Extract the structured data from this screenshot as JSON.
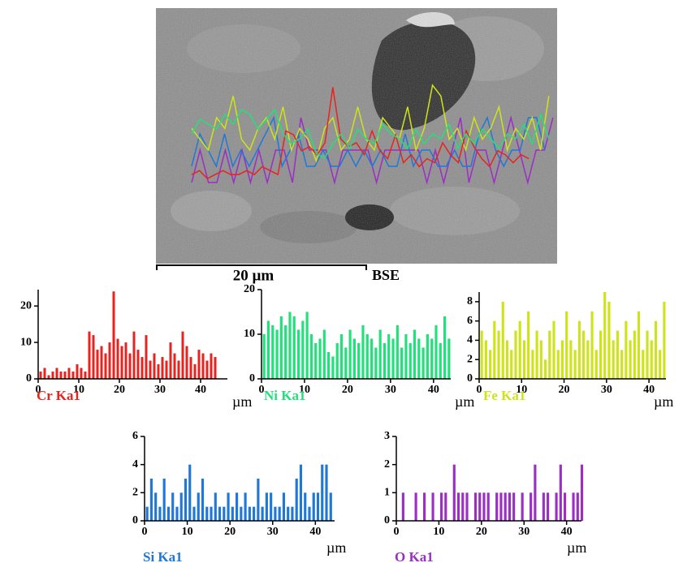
{
  "image": {
    "scale_bar_label": "20 µm",
    "detector": "BSE"
  },
  "chart_data": [
    {
      "type": "bar",
      "title": "Cr Ka1",
      "x_label": "µm",
      "color": "#e8231f",
      "x": [
        0,
        1,
        2,
        3,
        4,
        5,
        6,
        7,
        8,
        9,
        10,
        11,
        12,
        13,
        14,
        15,
        16,
        17,
        18,
        19,
        20,
        21,
        22,
        23,
        24,
        25,
        26,
        27,
        28,
        29,
        30,
        31,
        32,
        33,
        34,
        35,
        36,
        37,
        38,
        39,
        40,
        41,
        42,
        43
      ],
      "values": [
        2,
        3,
        1,
        2,
        3,
        2,
        2,
        3,
        2,
        4,
        3,
        2,
        13,
        12,
        8,
        9,
        7,
        10,
        24,
        11,
        9,
        10,
        7,
        13,
        8,
        6,
        12,
        5,
        7,
        4,
        6,
        5,
        10,
        7,
        5,
        13,
        9,
        6,
        4,
        8,
        7,
        5,
        7,
        6
      ],
      "xlim": [
        0,
        46.6
      ],
      "ylim": [
        0,
        24.5
      ],
      "xticks": [
        0,
        10,
        20,
        30,
        40
      ],
      "yticks": [
        0,
        10,
        20
      ]
    },
    {
      "type": "bar",
      "title": "Ni Ka1",
      "x_label": "µm",
      "color": "#22e07a",
      "x": [
        0,
        1,
        2,
        3,
        4,
        5,
        6,
        7,
        8,
        9,
        10,
        11,
        12,
        13,
        14,
        15,
        16,
        17,
        18,
        19,
        20,
        21,
        22,
        23,
        24,
        25,
        26,
        27,
        28,
        29,
        30,
        31,
        32,
        33,
        34,
        35,
        36,
        37,
        38,
        39,
        40,
        41,
        42,
        43
      ],
      "values": [
        10,
        13,
        12,
        11,
        14,
        12,
        15,
        14,
        11,
        13,
        15,
        10,
        8,
        9,
        11,
        6,
        5,
        8,
        10,
        7,
        11,
        9,
        8,
        12,
        10,
        9,
        7,
        11,
        8,
        10,
        9,
        12,
        7,
        10,
        8,
        11,
        9,
        7,
        10,
        9,
        12,
        8,
        14,
        9
      ],
      "xlim": [
        0,
        44
      ],
      "ylim": [
        0,
        20
      ],
      "xticks": [
        0,
        10,
        20,
        30,
        40
      ],
      "yticks": [
        0,
        10,
        20
      ]
    },
    {
      "type": "bar",
      "title": "Fe Ka1",
      "x_label": "µm",
      "color": "#cfe31a",
      "x": [
        0,
        1,
        2,
        3,
        4,
        5,
        6,
        7,
        8,
        9,
        10,
        11,
        12,
        13,
        14,
        15,
        16,
        17,
        18,
        19,
        20,
        21,
        22,
        23,
        24,
        25,
        26,
        27,
        28,
        29,
        30,
        31,
        32,
        33,
        34,
        35,
        36,
        37,
        38,
        39,
        40,
        41,
        42,
        43
      ],
      "values": [
        5,
        4,
        3,
        6,
        5,
        8,
        4,
        3,
        5,
        6,
        4,
        7,
        3,
        5,
        4,
        2,
        5,
        6,
        3,
        4,
        7,
        4,
        3,
        6,
        5,
        4,
        7,
        3,
        5,
        9,
        8,
        4,
        5,
        3,
        6,
        4,
        5,
        7,
        3,
        5,
        4,
        6,
        3,
        8
      ],
      "xlim": [
        0,
        44
      ],
      "ylim": [
        0,
        9
      ],
      "xticks": [
        0,
        10,
        20,
        30,
        40
      ],
      "yticks": [
        0,
        2,
        4,
        6,
        8
      ]
    },
    {
      "type": "bar",
      "title": "Si Ka1",
      "x_label": "µm",
      "color": "#1f78d8",
      "x": [
        0,
        1,
        2,
        3,
        4,
        5,
        6,
        7,
        8,
        9,
        10,
        11,
        12,
        13,
        14,
        15,
        16,
        17,
        18,
        19,
        20,
        21,
        22,
        23,
        24,
        25,
        26,
        27,
        28,
        29,
        30,
        31,
        32,
        33,
        34,
        35,
        36,
        37,
        38,
        39,
        40,
        41,
        42,
        43
      ],
      "values": [
        1,
        3,
        2,
        1,
        3,
        1,
        2,
        1,
        2,
        3,
        4,
        1,
        2,
        3,
        1,
        1,
        2,
        1,
        1,
        2,
        1,
        2,
        1,
        2,
        1,
        1,
        3,
        1,
        2,
        2,
        1,
        1,
        2,
        1,
        1,
        3,
        4,
        2,
        1,
        2,
        2,
        4,
        4,
        2
      ],
      "xlim": [
        0,
        44.5
      ],
      "ylim": [
        0,
        6
      ],
      "xticks": [
        0,
        10,
        20,
        30,
        40
      ],
      "yticks": [
        0,
        2,
        4,
        6
      ]
    },
    {
      "type": "bar",
      "title": "O Ka1",
      "x_label": "µm",
      "color": "#9b2fc4",
      "x": [
        0,
        1,
        2,
        3,
        4,
        5,
        6,
        7,
        8,
        9,
        10,
        11,
        12,
        13,
        14,
        15,
        16,
        17,
        18,
        19,
        20,
        21,
        22,
        23,
        24,
        25,
        26,
        27,
        28,
        29,
        30,
        31,
        32,
        33,
        34,
        35,
        36,
        37,
        38,
        39,
        40,
        41,
        42,
        43
      ],
      "values": [
        0,
        1,
        0,
        0,
        1,
        0,
        1,
        0,
        1,
        0,
        1,
        1,
        0,
        2,
        1,
        1,
        1,
        0,
        1,
        1,
        1,
        1,
        0,
        1,
        1,
        1,
        1,
        1,
        0,
        1,
        0,
        1,
        2,
        0,
        1,
        1,
        0,
        1,
        2,
        1,
        0,
        1,
        1,
        2
      ],
      "xlim": [
        0,
        43.5
      ],
      "ylim": [
        0,
        3
      ],
      "xticks": [
        0,
        10,
        20,
        30,
        40
      ],
      "yticks": [
        0,
        1,
        2,
        3
      ]
    }
  ]
}
